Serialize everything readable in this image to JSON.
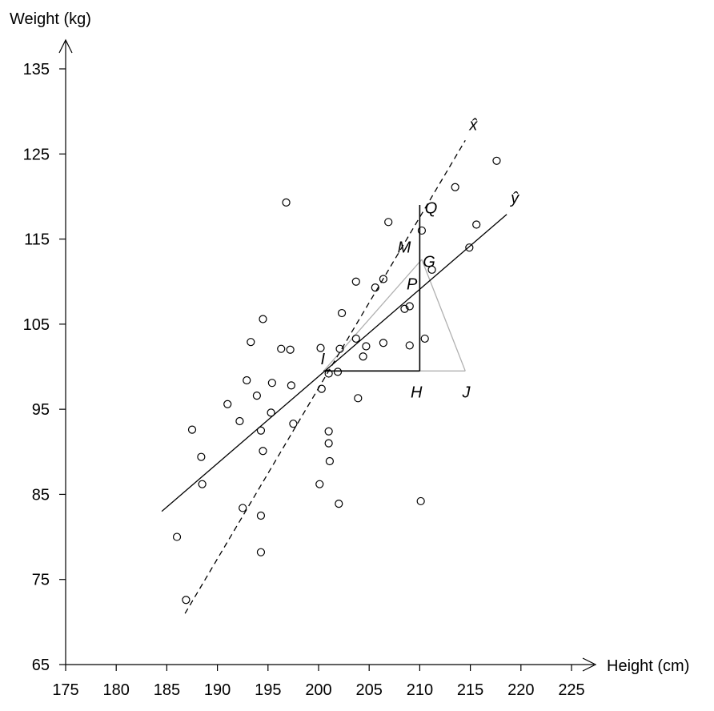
{
  "chart_data": {
    "type": "scatter",
    "xlabel": "Height (cm)",
    "ylabel": "Weight (kg)",
    "xlim": [
      175,
      225
    ],
    "ylim": [
      65,
      135
    ],
    "x_ticks": [
      175,
      180,
      185,
      190,
      195,
      200,
      205,
      210,
      215,
      220,
      225
    ],
    "y_ticks": [
      65,
      75,
      85,
      95,
      105,
      115,
      125,
      135
    ],
    "grid": false,
    "points": [
      [
        186,
        80
      ],
      [
        186.9,
        72.6
      ],
      [
        187.5,
        92.6
      ],
      [
        188.4,
        89.4
      ],
      [
        188.5,
        86.2
      ],
      [
        191,
        95.6
      ],
      [
        192.2,
        93.6
      ],
      [
        192.5,
        83.4
      ],
      [
        192.9,
        98.4
      ],
      [
        193.3,
        102.9
      ],
      [
        193.9,
        96.6
      ],
      [
        194.3,
        92.5
      ],
      [
        194.3,
        82.5
      ],
      [
        194.3,
        78.2
      ],
      [
        194.5,
        90.1
      ],
      [
        194.5,
        105.6
      ],
      [
        195.3,
        94.6
      ],
      [
        195.4,
        98.1
      ],
      [
        196.3,
        102.1
      ],
      [
        196.8,
        119.3
      ],
      [
        197.2,
        102
      ],
      [
        197.3,
        97.8
      ],
      [
        197.5,
        93.3
      ],
      [
        200.1,
        86.2
      ],
      [
        200.2,
        102.2
      ],
      [
        200.3,
        97.4
      ],
      [
        201,
        92.4
      ],
      [
        201,
        91
      ],
      [
        201,
        99.2
      ],
      [
        201.1,
        88.9
      ],
      [
        201.9,
        99.4
      ],
      [
        202,
        83.9
      ],
      [
        202.1,
        102.1
      ],
      [
        202.3,
        106.3
      ],
      [
        203.7,
        110
      ],
      [
        203.7,
        103.3
      ],
      [
        203.9,
        96.3
      ],
      [
        204.4,
        101.2
      ],
      [
        204.7,
        102.4
      ],
      [
        205.6,
        109.3
      ],
      [
        206.4,
        110.3
      ],
      [
        206.4,
        102.8
      ],
      [
        206.9,
        117
      ],
      [
        208.5,
        106.8
      ],
      [
        209,
        107.1
      ],
      [
        209,
        102.5
      ],
      [
        210.1,
        84.2
      ],
      [
        210.2,
        116
      ],
      [
        210.5,
        103.3
      ],
      [
        211.2,
        111.4
      ],
      [
        213.5,
        121.1
      ],
      [
        214.9,
        114
      ],
      [
        215.6,
        116.7
      ],
      [
        217.6,
        124.2
      ]
    ],
    "lines": [
      {
        "name": "ŷ",
        "style": "solid",
        "x": [
          184.5,
          218.6
        ],
        "y": [
          83,
          117.9
        ]
      },
      {
        "name": "x̂",
        "style": "dashed",
        "x": [
          186.8,
          214.5
        ],
        "y": [
          71,
          126.6
        ]
      }
    ],
    "construction": {
      "black": [
        {
          "x": [
            200.5,
            210
          ],
          "y": [
            99.5,
            99.5
          ]
        },
        {
          "x": [
            210,
            210
          ],
          "y": [
            99.5,
            119
          ]
        }
      ],
      "gray": [
        {
          "x": [
            200.5,
            210.2
          ],
          "y": [
            99.5,
            112.6
          ]
        },
        {
          "x": [
            210.2,
            214.5
          ],
          "y": [
            112.6,
            99.5
          ]
        },
        {
          "x": [
            210,
            214.5
          ],
          "y": [
            99.5,
            99.5
          ]
        }
      ]
    },
    "annotations": [
      {
        "text": "Q",
        "x": 210.5,
        "y": 118
      },
      {
        "text": "M",
        "x": 207.8,
        "y": 113.4
      },
      {
        "text": "G",
        "x": 210.3,
        "y": 111.7
      },
      {
        "text": "P",
        "x": 208.7,
        "y": 109.1
      },
      {
        "text": "I",
        "x": 200.2,
        "y": 100.3
      },
      {
        "text": "H",
        "x": 209.1,
        "y": 96.4
      },
      {
        "text": "J",
        "x": 214.2,
        "y": 96.4
      },
      {
        "text": "x̂",
        "x": 214.9,
        "y": 127.8
      },
      {
        "text": "ŷ",
        "x": 219,
        "y": 119.2
      }
    ]
  }
}
